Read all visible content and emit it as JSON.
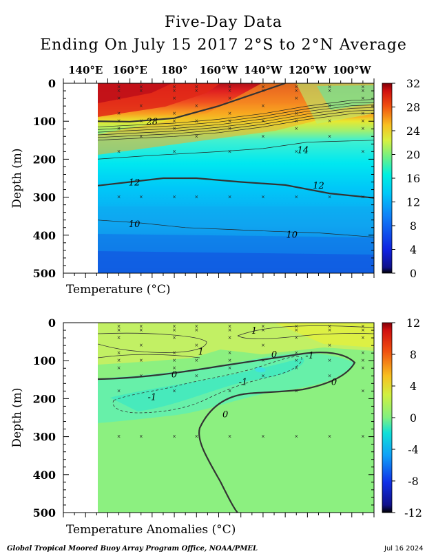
{
  "header": {
    "title": "Five-Day Data",
    "subtitle": "Ending On July 15 2017  2°S to 2°N Average"
  },
  "footer": {
    "credit": "Global Tropical Moored Buoy Array Program Office, NOAA/PMEL",
    "date": "Jul 16 2024"
  },
  "chart_data": [
    {
      "type": "heatmap",
      "panel": "temperature",
      "xlabel": "Temperature  (°C)",
      "ylabel": "Depth (m)",
      "x_ticks": [
        "140°E",
        "160°E",
        "180°",
        "160°W",
        "140°W",
        "120°W",
        "100°W"
      ],
      "x_range_deg_east": [
        130,
        270
      ],
      "y_ticks": [
        0,
        100,
        200,
        300,
        400,
        500
      ],
      "ylim": [
        500,
        0
      ],
      "colorbar": {
        "ticks": [
          0,
          4,
          8,
          12,
          16,
          20,
          24,
          28,
          32
        ],
        "range": [
          0,
          32
        ]
      },
      "contour_labels": [
        {
          "text": "28",
          "lon": 170,
          "depth": 100
        },
        {
          "text": "14",
          "lon": 238,
          "depth": 175
        },
        {
          "text": "12",
          "lon": 162,
          "depth": 260
        },
        {
          "text": "12",
          "lon": 245,
          "depth": 268
        },
        {
          "text": "10",
          "lon": 162,
          "depth": 370
        },
        {
          "text": "10",
          "lon": 233,
          "depth": 398
        }
      ],
      "isotherms": [
        {
          "level": 28,
          "points": [
            [
              145,
              100
            ],
            [
              160,
              101
            ],
            [
              180,
              92
            ],
            [
              200,
              60
            ],
            [
              220,
              20
            ],
            [
              230,
              0
            ]
          ]
        },
        {
          "level": 20,
          "points": [
            [
              145,
              150
            ],
            [
              180,
              140
            ],
            [
              200,
              130
            ],
            [
              220,
              115
            ],
            [
              240,
              95
            ],
            [
              260,
              80
            ],
            [
              270,
              78
            ]
          ]
        },
        {
          "level": 14,
          "points": [
            [
              145,
              200
            ],
            [
              170,
              190
            ],
            [
              200,
              180
            ],
            [
              220,
              172
            ],
            [
              240,
              155
            ],
            [
              270,
              150
            ]
          ]
        },
        {
          "level": 12,
          "points": [
            [
              145,
              270
            ],
            [
              160,
              260
            ],
            [
              175,
              250
            ],
            [
              190,
              250
            ],
            [
              210,
              260
            ],
            [
              230,
              268
            ],
            [
              250,
              290
            ],
            [
              270,
              302
            ]
          ]
        },
        {
          "level": 10,
          "points": [
            [
              145,
              360
            ],
            [
              165,
              368
            ],
            [
              185,
              380
            ],
            [
              205,
              385
            ],
            [
              225,
              390
            ],
            [
              245,
              394
            ],
            [
              270,
              405
            ]
          ]
        }
      ]
    },
    {
      "type": "heatmap",
      "panel": "temperature anomalies",
      "xlabel": "Temperature Anomalies (°C)",
      "ylabel": "Depth (m)",
      "x_ticks": [
        "140°E",
        "160°E",
        "180°",
        "160°W",
        "140°W",
        "120°W",
        "100°W"
      ],
      "x_range_deg_east": [
        130,
        270
      ],
      "y_ticks": [
        0,
        100,
        200,
        300,
        400,
        500
      ],
      "ylim": [
        500,
        0
      ],
      "colorbar": {
        "ticks": [
          -12,
          -8,
          -4,
          0,
          4,
          8,
          12
        ],
        "range": [
          -12,
          12
        ]
      },
      "contour_labels": [
        {
          "text": "1",
          "lon": 192,
          "depth": 75
        },
        {
          "text": "1",
          "lon": 216,
          "depth": 20
        },
        {
          "text": "0",
          "lon": 180,
          "depth": 135
        },
        {
          "text": "0",
          "lon": 225,
          "depth": 82
        },
        {
          "text": "-1",
          "lon": 211,
          "depth": 155
        },
        {
          "text": "-1",
          "lon": 241,
          "depth": 85
        },
        {
          "text": "-1",
          "lon": 170,
          "depth": 195
        },
        {
          "text": "0",
          "lon": 252,
          "depth": 155
        },
        {
          "text": "0",
          "lon": 203,
          "depth": 240
        }
      ]
    }
  ]
}
